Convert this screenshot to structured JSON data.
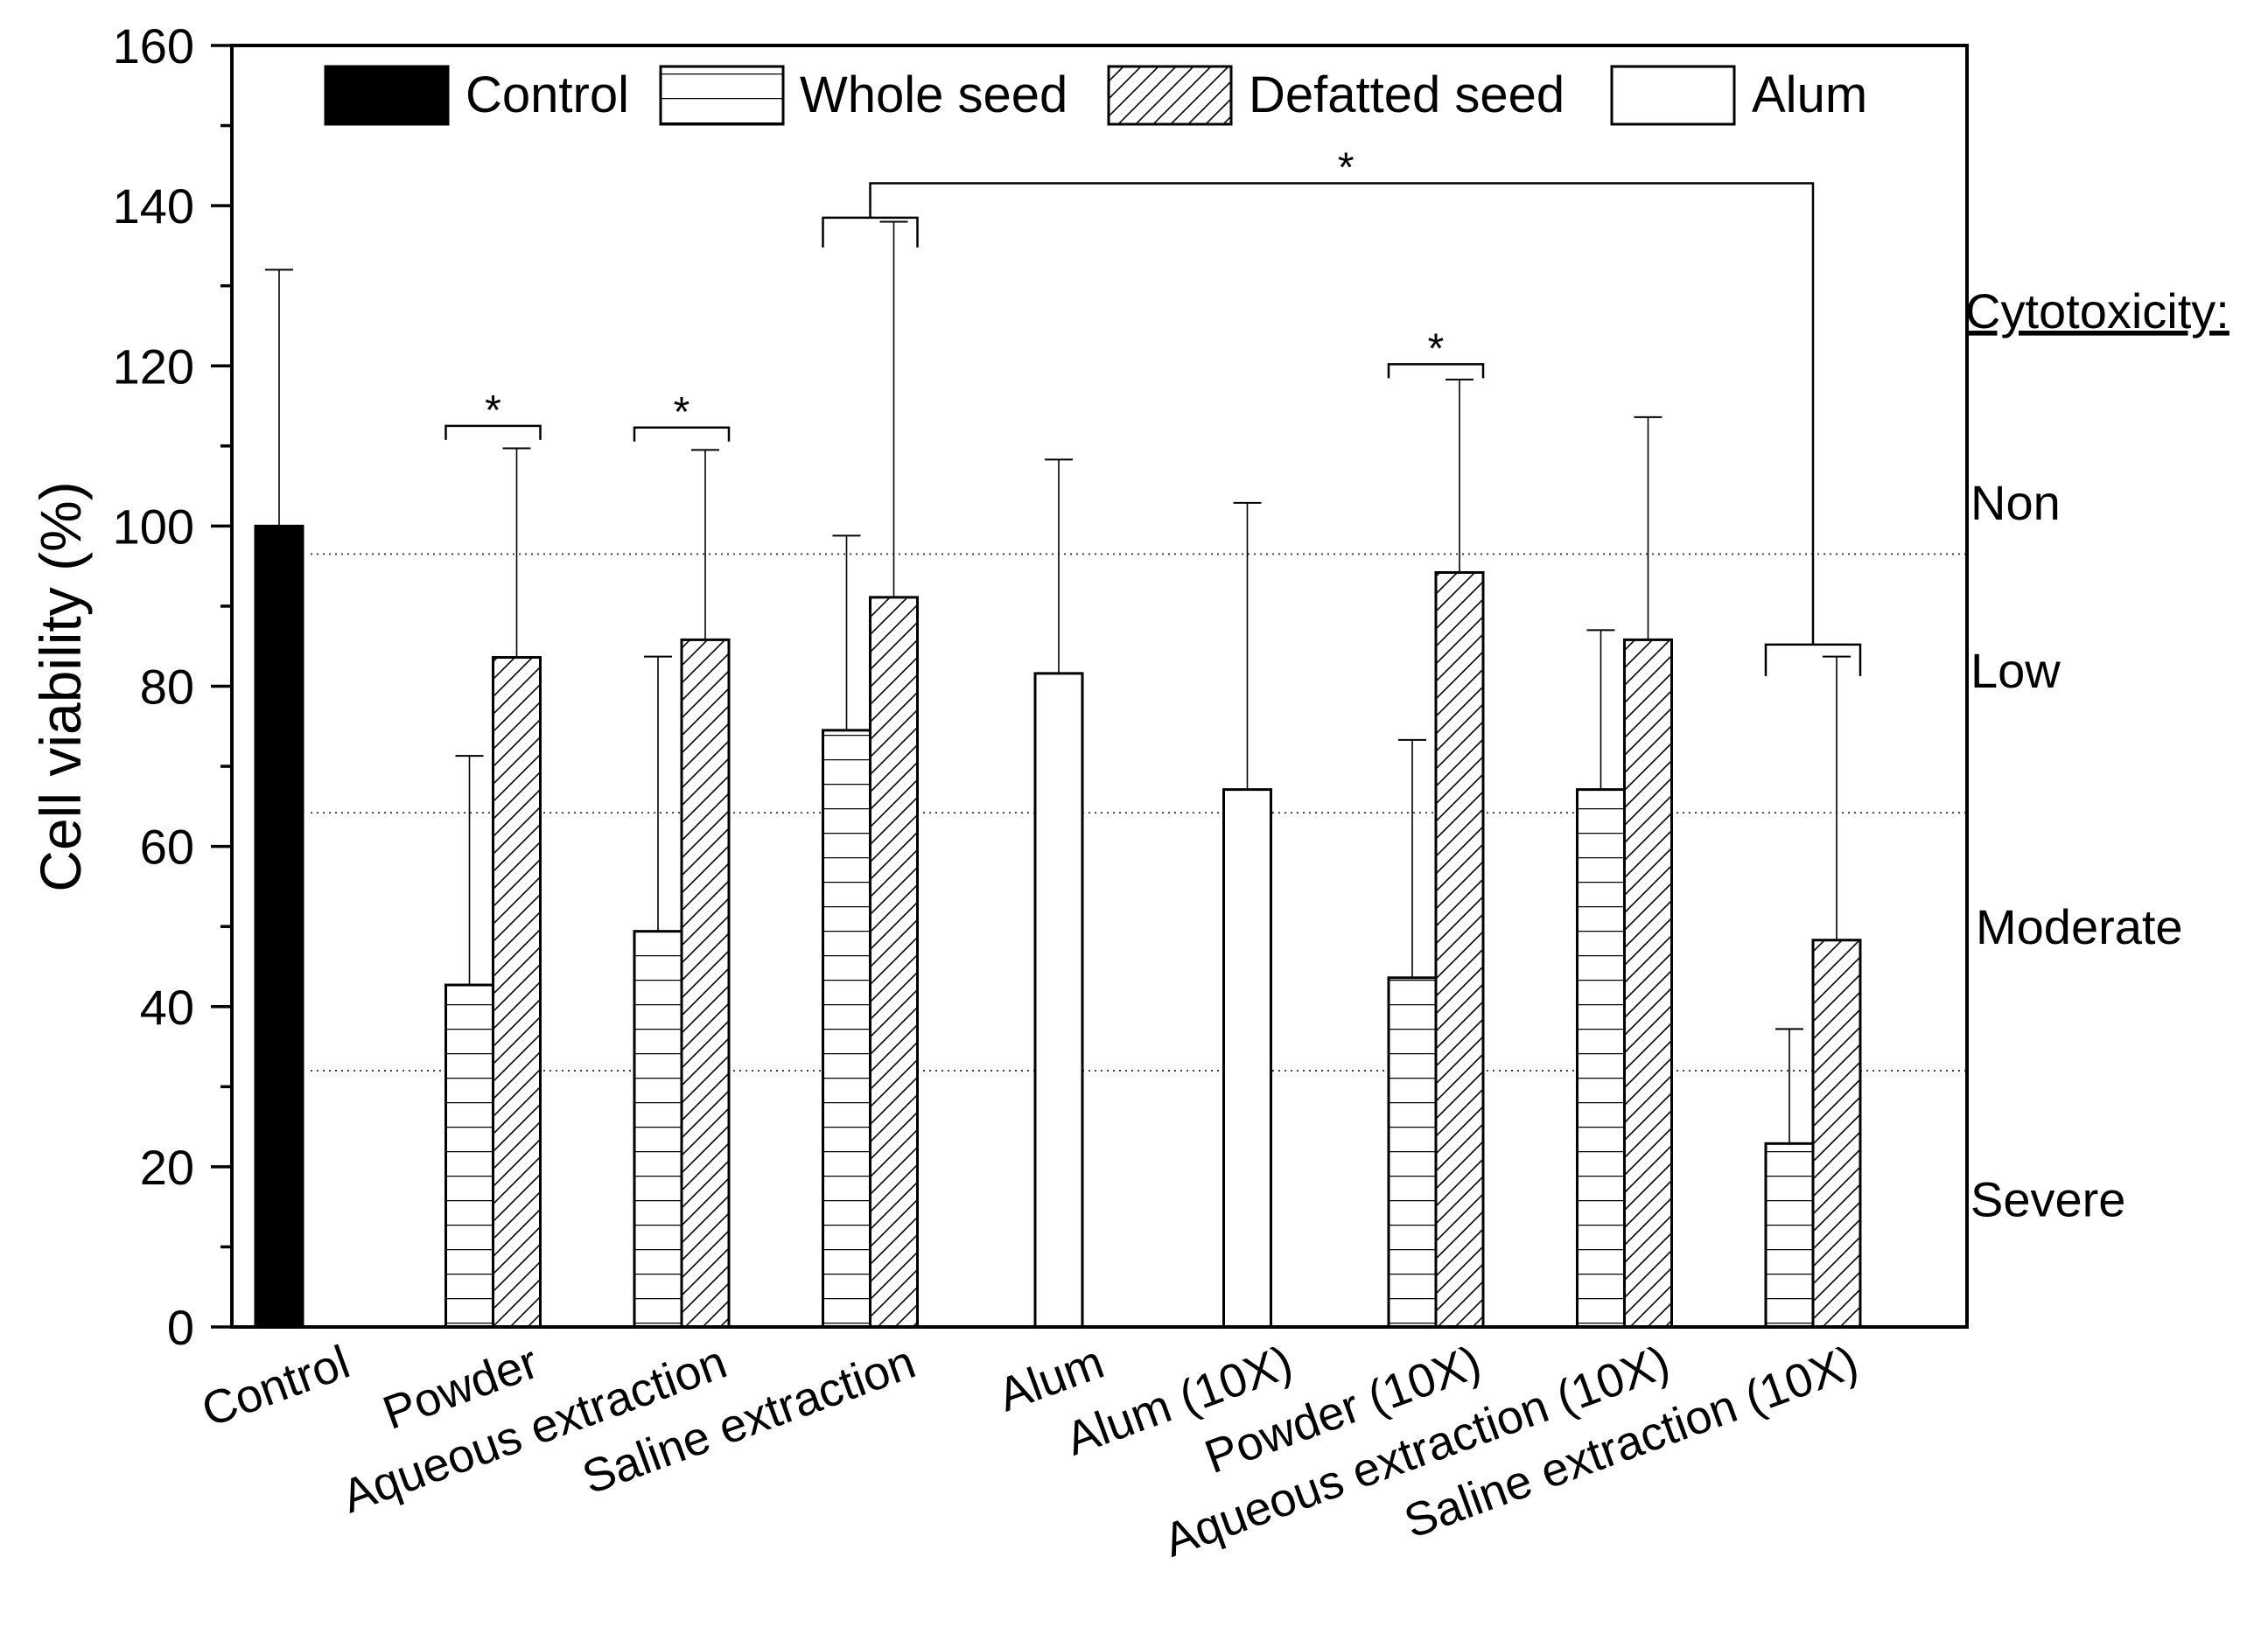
{
  "chart_data": {
    "type": "bar",
    "ylabel": "Cell viability (%)",
    "xlabel": "",
    "ylim": [
      0,
      160
    ],
    "y_major_ticks": [
      0,
      20,
      40,
      60,
      80,
      100,
      120,
      140,
      160
    ],
    "y_minor_step": 10,
    "categories": [
      "Control",
      "Powder",
      "Aqueous extraction",
      "Saline extraction",
      "Alum",
      "Alum (10X)",
      "Powder (10X)",
      "Aqueous extraction (10X)",
      "Saline extraction (10X)"
    ],
    "legend": [
      {
        "name": "Control",
        "pattern": "solid"
      },
      {
        "name": "Whole seed",
        "pattern": "horizontal"
      },
      {
        "name": "Defatted seed",
        "pattern": "diagonal"
      },
      {
        "name": "Alum",
        "pattern": "empty"
      }
    ],
    "bars": [
      {
        "category": "Control",
        "series": "Control",
        "value": 100,
        "error": 132
      },
      {
        "category": "Powder",
        "series": "Whole seed",
        "value": 42.7,
        "error": 71.3
      },
      {
        "category": "Powder",
        "series": "Defatted seed",
        "value": 83.6,
        "error": 109.7
      },
      {
        "category": "Aqueous extraction",
        "series": "Whole seed",
        "value": 49.4,
        "error": 83.7
      },
      {
        "category": "Aqueous extraction",
        "series": "Defatted seed",
        "value": 85.8,
        "error": 109.5
      },
      {
        "category": "Saline extraction",
        "series": "Whole seed",
        "value": 74.5,
        "error": 98.8
      },
      {
        "category": "Saline extraction",
        "series": "Defatted seed",
        "value": 91.1,
        "error": 138
      },
      {
        "category": "Alum",
        "series": "Alum",
        "value": 81.6,
        "error": 108.3
      },
      {
        "category": "Alum (10X)",
        "series": "Alum",
        "value": 67.1,
        "error": 102.9
      },
      {
        "category": "Powder (10X)",
        "series": "Whole seed",
        "value": 43.6,
        "error": 73.3
      },
      {
        "category": "Powder (10X)",
        "series": "Defatted seed",
        "value": 94.2,
        "error": 118.3
      },
      {
        "category": "Aqueous extraction (10X)",
        "series": "Whole seed",
        "value": 67.1,
        "error": 87.0
      },
      {
        "category": "Aqueous extraction (10X)",
        "series": "Defatted seed",
        "value": 85.8,
        "error": 113.6
      },
      {
        "category": "Saline extraction (10X)",
        "series": "Whole seed",
        "value": 22.9,
        "error": 37.2
      },
      {
        "category": "Saline extraction (10X)",
        "series": "Defatted seed",
        "value": 48.3,
        "error": 83.7
      }
    ],
    "threshold_lines": [
      96.5,
      64.2,
      32
    ],
    "cytotoxicity": {
      "title": "Cytotoxicity:",
      "levels": [
        {
          "label": "Non",
          "y": 103
        },
        {
          "label": "Low",
          "y": 82
        },
        {
          "label": "Moderate",
          "y": 50
        },
        {
          "label": "Severe",
          "y": 16
        }
      ]
    },
    "significance": [
      {
        "label": "*",
        "type": "pair",
        "category": "Powder",
        "y": 112.5
      },
      {
        "label": "*",
        "type": "pair",
        "category": "Aqueous extraction",
        "y": 112.3
      },
      {
        "label": "*",
        "type": "pair",
        "category": "Powder (10X)",
        "y": 120.2
      },
      {
        "label": "*",
        "type": "group",
        "from": "Saline extraction",
        "to": "Saline extraction (10X)",
        "bracket_y": 138.5,
        "connector_y": 142.8
      }
    ]
  }
}
